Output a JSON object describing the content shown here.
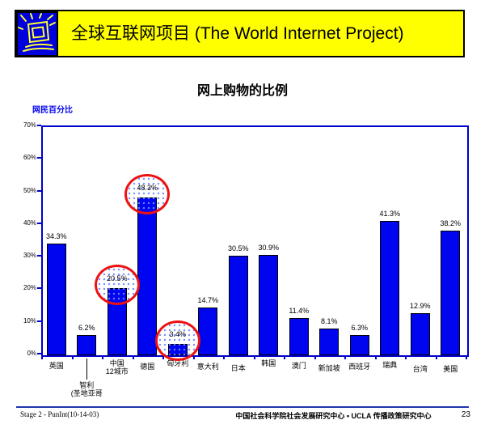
{
  "header": {
    "title": "全球互联网项目 (The World Internet Project)",
    "banner_color": "#ffff00",
    "icon": "shining-monitor-icon"
  },
  "slide_title": "网上购物的比例",
  "chart_data": {
    "type": "bar",
    "title": "网上购物的比例",
    "xlabel": "",
    "ylabel": "网民百分比",
    "ylim": [
      0,
      70
    ],
    "yticks": [
      "0%",
      "10%",
      "20%",
      "30%",
      "40%",
      "50%",
      "60%",
      "70%"
    ],
    "grid": false,
    "legend": "none",
    "bar_color": "#0005f0",
    "axis_color": "#0000cc",
    "annotation_circle_color": "#ee1111",
    "categories": [
      [
        "英国"
      ],
      [
        "智利",
        "(圣地亚哥"
      ],
      [
        "中国",
        "12城市"
      ],
      [
        "德国"
      ],
      [
        "匈牙利"
      ],
      [
        "意大利"
      ],
      [
        "日本"
      ],
      [
        "韩国"
      ],
      [
        "澳门"
      ],
      [
        "新加坡"
      ],
      [
        "西班牙"
      ],
      [
        "瑞典"
      ],
      [
        "台湾"
      ],
      [
        "美国"
      ]
    ],
    "values": [
      34.3,
      6.2,
      20.5,
      48.3,
      3.4,
      14.7,
      30.5,
      30.9,
      11.4,
      8.1,
      6.3,
      41.3,
      12.9,
      38.2
    ],
    "value_labels": [
      "34.3%",
      "6.2%",
      "20.5%",
      "48.3%",
      "3.4%",
      "14.7%",
      "30.5%",
      "30.9%",
      "11.4%",
      "8.1%",
      "6.3%",
      "41.3%",
      "12.9%",
      "38.2%"
    ],
    "circled_indices": [
      2,
      3,
      4
    ],
    "leader_line_index": 1,
    "label_dy": [
      10,
      34,
      7,
      11,
      7,
      11,
      13,
      7,
      10,
      13,
      11,
      9,
      14,
      14
    ]
  },
  "footer": {
    "left": "Stage 2 - PunInt(10-14-03)",
    "center": "中国社会科学院社会发展研究中心 • UCLA 传播政策研究中心",
    "page": "23"
  }
}
